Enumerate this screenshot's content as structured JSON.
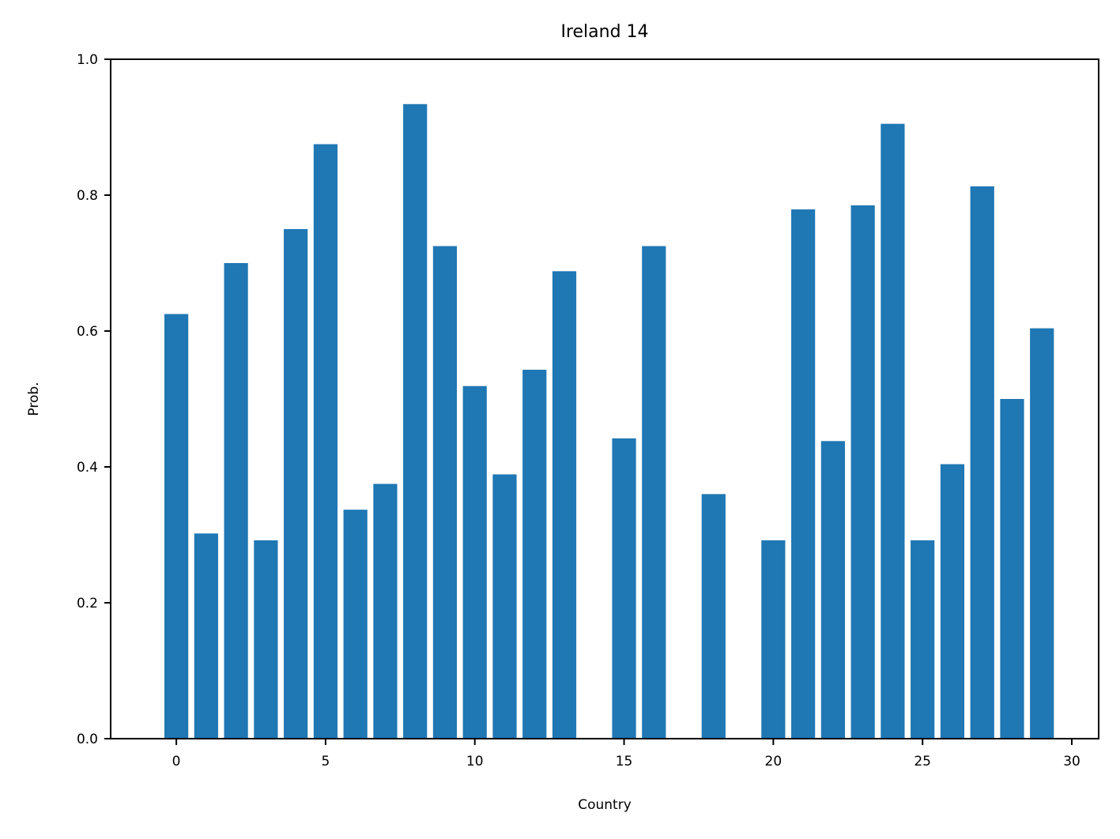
{
  "chart_data": {
    "type": "bar",
    "title": "Ireland 14",
    "xlabel": "Country",
    "ylabel": "Prob.",
    "x": [
      0,
      1,
      2,
      3,
      4,
      5,
      6,
      7,
      8,
      9,
      10,
      11,
      12,
      13,
      15,
      16,
      18,
      20,
      21,
      22,
      23,
      24,
      25,
      26,
      27,
      28,
      29
    ],
    "values": [
      0.625,
      0.302,
      0.7,
      0.292,
      0.75,
      0.875,
      0.337,
      0.375,
      0.934,
      0.725,
      0.519,
      0.389,
      0.543,
      0.688,
      0.442,
      0.725,
      0.36,
      0.292,
      0.779,
      0.438,
      0.785,
      0.905,
      0.292,
      0.404,
      0.813,
      0.5,
      0.604
    ],
    "xlim": [
      -2.2,
      30.9
    ],
    "ylim": [
      0,
      1.0
    ],
    "xticks": [
      0,
      5,
      10,
      15,
      20,
      25,
      30
    ],
    "yticks": [
      "0.0",
      "0.2",
      "0.4",
      "0.6",
      "0.8",
      "1.0"
    ],
    "bar_color": "#1f77b4",
    "grid": false,
    "legend": "none"
  }
}
